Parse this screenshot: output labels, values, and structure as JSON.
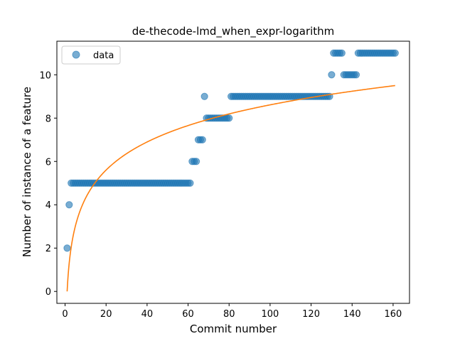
{
  "chart_data": {
    "type": "scatter",
    "title": "de-thecode-lmd_when_expr-logarithm",
    "xlabel": "Commit number",
    "ylabel": "Number of instance of a feature",
    "xlim": [
      -4,
      168
    ],
    "ylim": [
      -0.55,
      11.55
    ],
    "xticks": [
      0,
      20,
      40,
      60,
      80,
      100,
      120,
      140,
      160
    ],
    "yticks": [
      0,
      2,
      4,
      6,
      8,
      10
    ],
    "grid": false,
    "legend": {
      "placement": "top-left",
      "entries": [
        "data"
      ]
    },
    "colors": {
      "data": "#1f77b4",
      "fit": "#ff7f0e"
    },
    "series": [
      {
        "name": "data",
        "kind": "scatter",
        "segments": [
          {
            "x_from": 1,
            "x_to": 1,
            "y": 2
          },
          {
            "x_from": 2,
            "x_to": 2,
            "y": 4
          },
          {
            "x_from": 3,
            "x_to": 61,
            "y": 5
          },
          {
            "x_from": 62,
            "x_to": 64,
            "y": 6
          },
          {
            "x_from": 65,
            "x_to": 67,
            "y": 7
          },
          {
            "x_from": 68,
            "x_to": 68,
            "y": 9
          },
          {
            "x_from": 69,
            "x_to": 80,
            "y": 8
          },
          {
            "x_from": 81,
            "x_to": 129,
            "y": 9
          },
          {
            "x_from": 130,
            "x_to": 130,
            "y": 10
          },
          {
            "x_from": 131,
            "x_to": 135,
            "y": 11
          },
          {
            "x_from": 136,
            "x_to": 142,
            "y": 10
          },
          {
            "x_from": 143,
            "x_to": 161,
            "y": 11
          }
        ]
      },
      {
        "name": "",
        "kind": "line",
        "fit": {
          "a": 1.87,
          "b": 0,
          "x_from": 1,
          "x_to": 161
        }
      }
    ]
  }
}
